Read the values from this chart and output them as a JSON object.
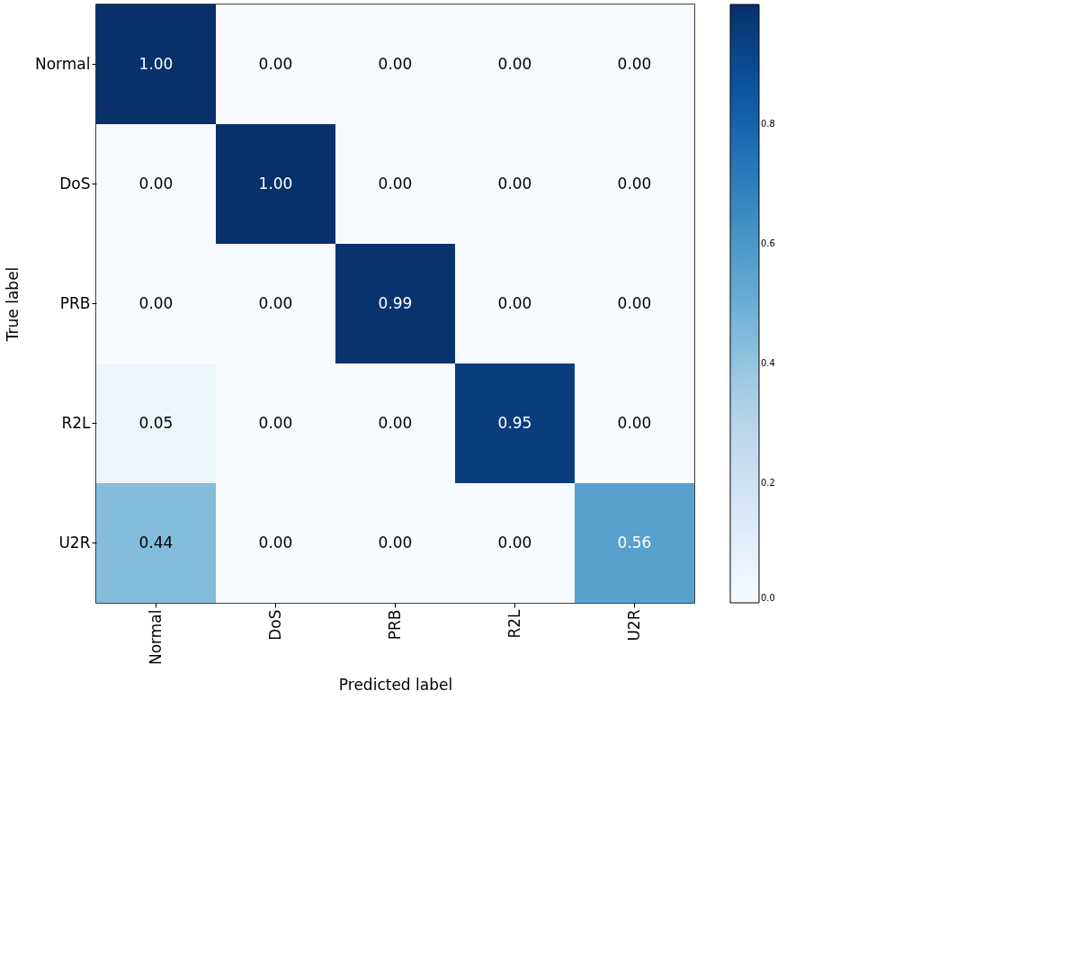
{
  "chart_data": {
    "type": "heatmap",
    "xlabel": "Predicted label",
    "ylabel": "True label",
    "categories": [
      "Normal",
      "DoS",
      "PRB",
      "R2L",
      "U2R"
    ],
    "y_categories": [
      "Normal",
      "DoS",
      "PRB",
      "R2L",
      "U2R"
    ],
    "cells": [
      [
        1.0,
        0.0,
        0.0,
        0.0,
        0.0
      ],
      [
        0.0,
        1.0,
        0.0,
        0.0,
        0.0
      ],
      [
        0.0,
        0.0,
        0.99,
        0.0,
        0.0
      ],
      [
        0.05,
        0.0,
        0.0,
        0.95,
        0.0
      ],
      [
        0.44,
        0.0,
        0.0,
        0.0,
        0.56
      ]
    ],
    "cell_labels": [
      [
        "1.00",
        "0.00",
        "0.00",
        "0.00",
        "0.00"
      ],
      [
        "0.00",
        "1.00",
        "0.00",
        "0.00",
        "0.00"
      ],
      [
        "0.00",
        "0.00",
        "0.99",
        "0.00",
        "0.00"
      ],
      [
        "0.05",
        "0.00",
        "0.00",
        "0.95",
        "0.00"
      ],
      [
        "0.44",
        "0.00",
        "0.00",
        "0.00",
        "0.56"
      ]
    ],
    "clim": [
      0,
      1.0
    ],
    "cticks": [
      {
        "value": 0,
        "label": "0.0"
      },
      {
        "value": 0.2,
        "label": "0.2"
      },
      {
        "value": 0.4,
        "label": "0.4"
      },
      {
        "value": 0.6,
        "label": "0.6"
      },
      {
        "value": 0.8,
        "label": "0.8"
      }
    ],
    "data_labels": true,
    "grid": false
  }
}
